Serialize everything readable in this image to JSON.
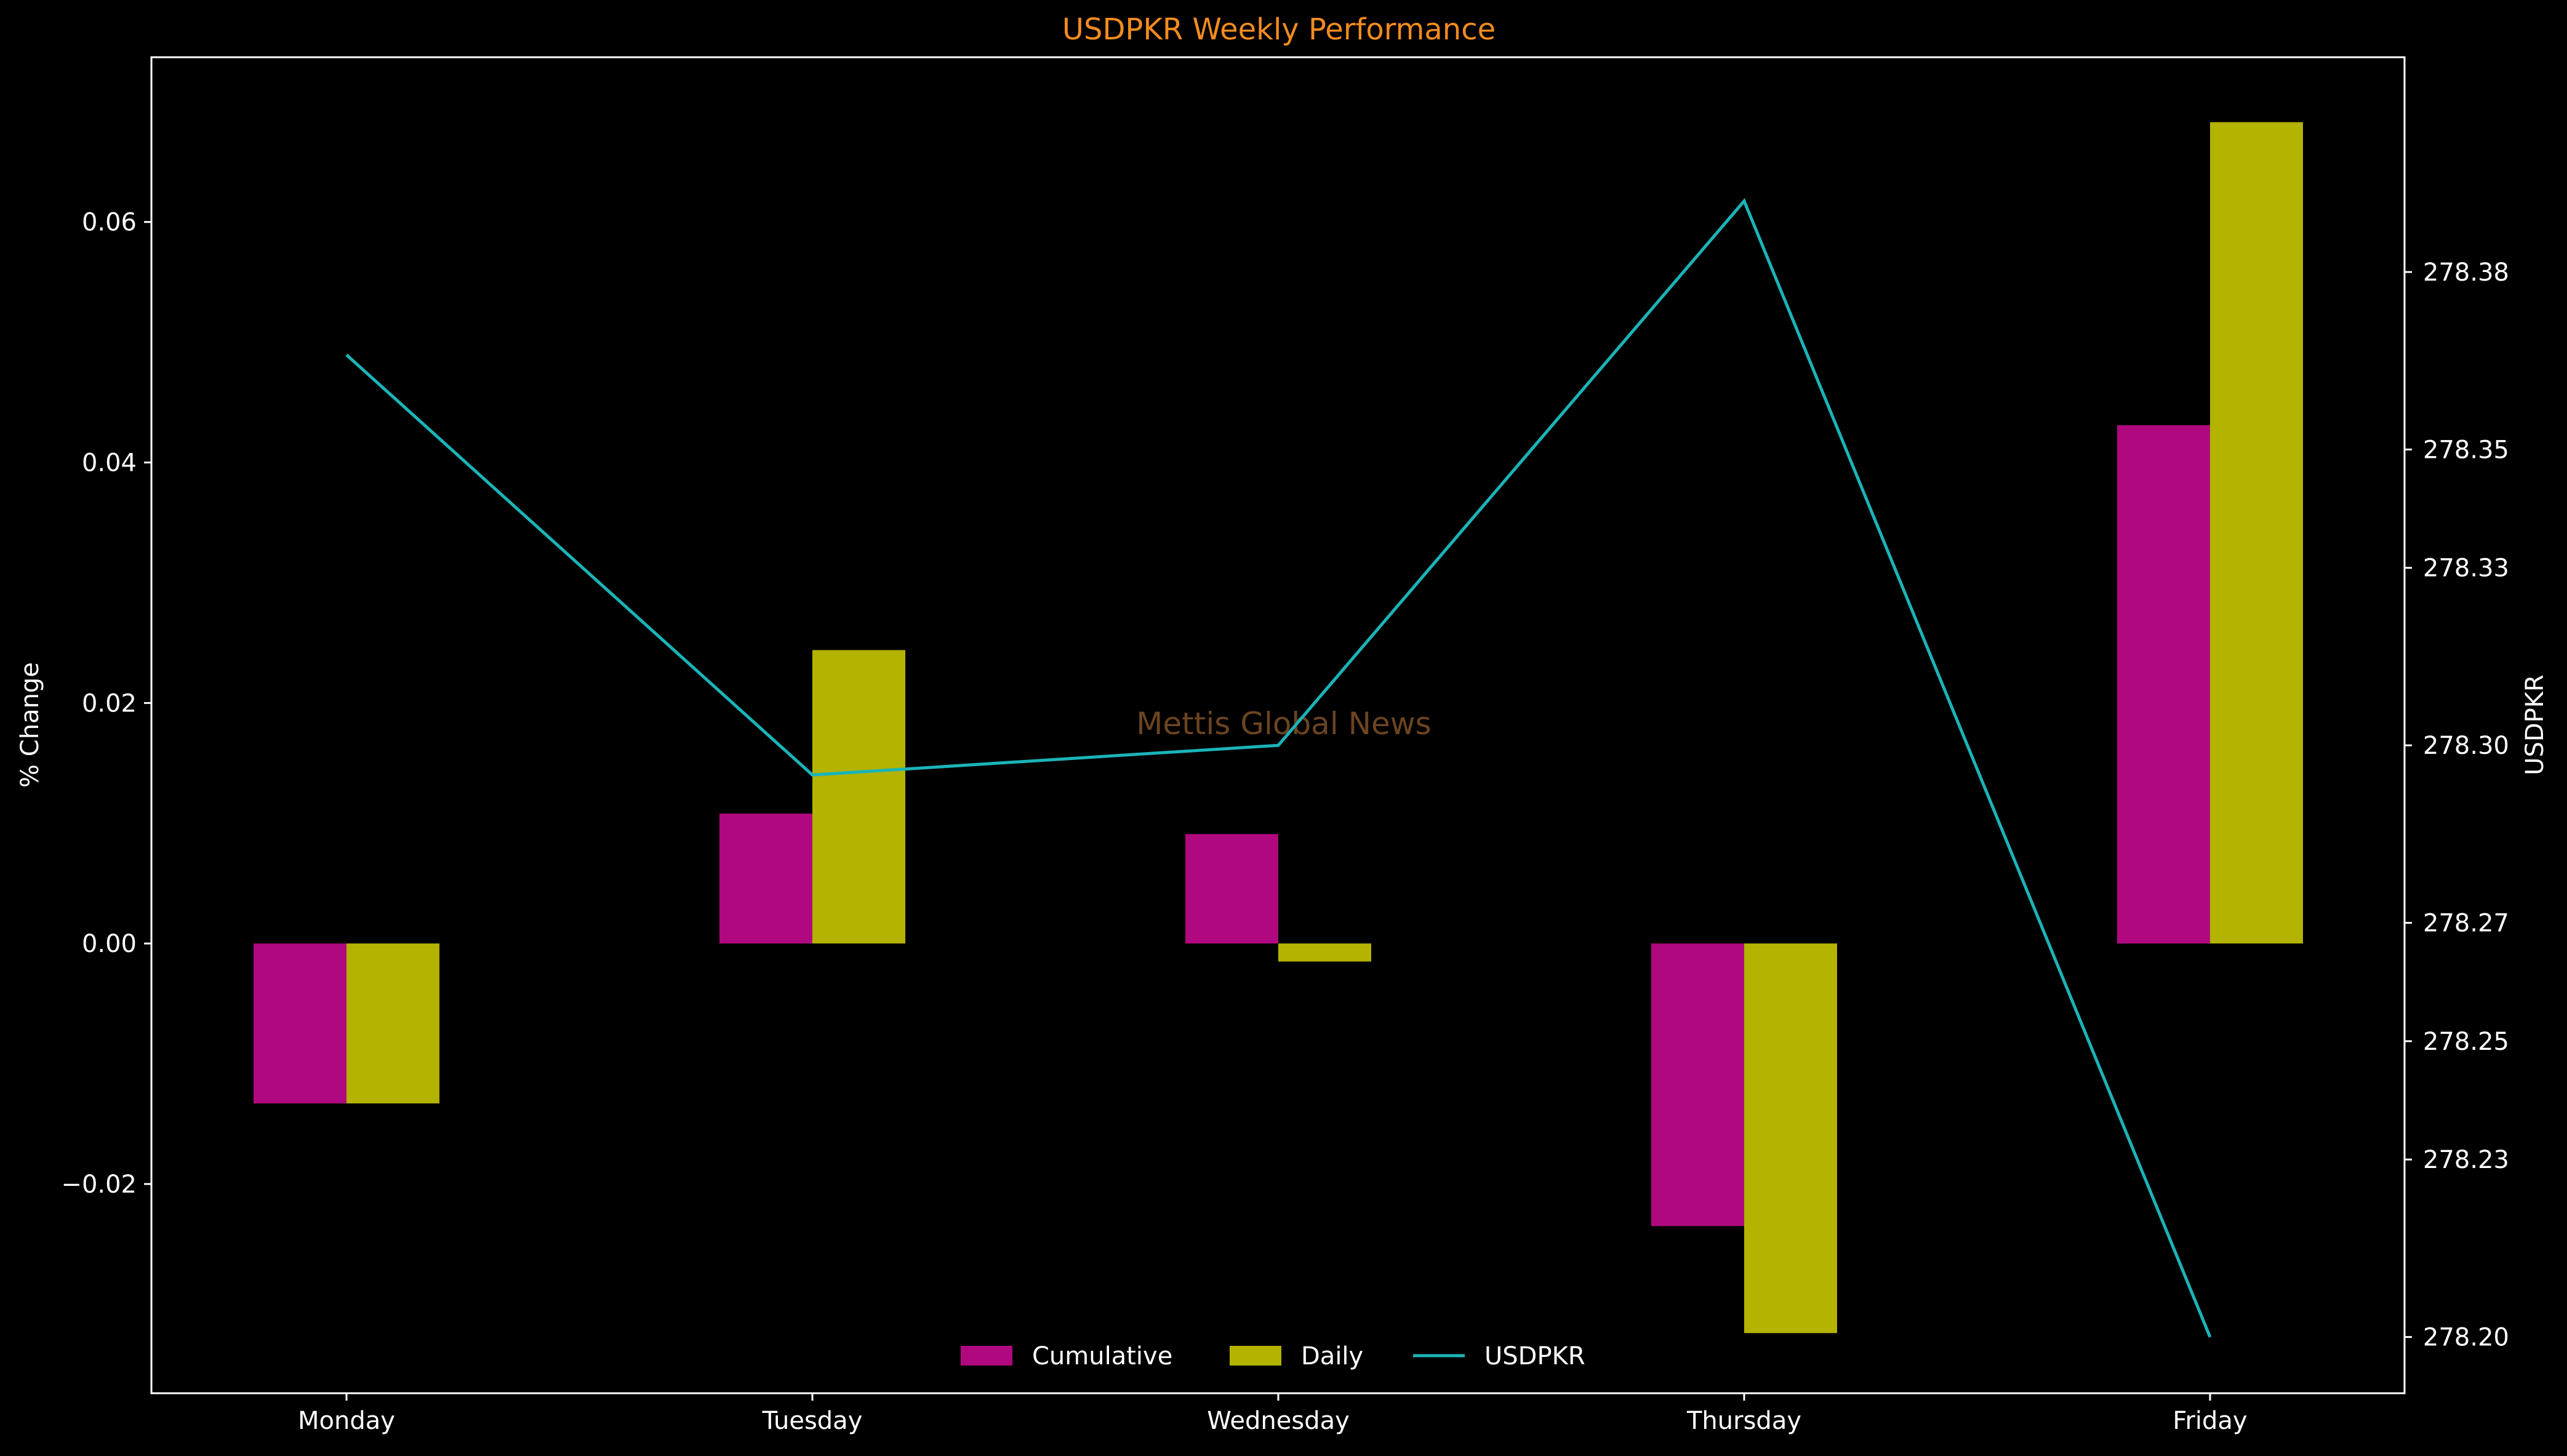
{
  "chart_data": {
    "type": "bar",
    "title": "USDPKR Weekly Performance",
    "categories": [
      "Monday",
      "Tuesday",
      "Wednesday",
      "Thursday",
      "Friday"
    ],
    "series": [
      {
        "name": "Cumulative",
        "type": "bar",
        "axis": "left",
        "color": "#b0097f",
        "values": [
          -0.0133,
          0.0108,
          0.0091,
          -0.0235,
          0.0431
        ]
      },
      {
        "name": "Daily",
        "type": "bar",
        "axis": "left",
        "color": "#b3b300",
        "values": [
          -0.0133,
          0.0244,
          -0.0015,
          -0.0324,
          0.0683
        ]
      },
      {
        "name": "USDPKR",
        "type": "line",
        "axis": "right",
        "color": "#1ab4b8",
        "values": [
          278.366,
          278.295,
          278.3,
          278.392,
          278.2
        ]
      }
    ],
    "ylabel": "% Change",
    "y2label": "USDPKR",
    "ylim": [
      -0.0374,
      0.0737
    ],
    "y2lim": [
      278.1905,
      278.4163
    ],
    "yticks": [
      "0.06",
      "0.04",
      "0.02",
      "0.00",
      "−0.02"
    ],
    "y2ticks": [
      "278.38",
      "278.35",
      "278.33",
      "278.30",
      "278.27",
      "278.25",
      "278.23",
      "278.20"
    ],
    "legend": {
      "placement": "bottom-center"
    },
    "watermark": "Mettis Global News",
    "grid": false
  }
}
